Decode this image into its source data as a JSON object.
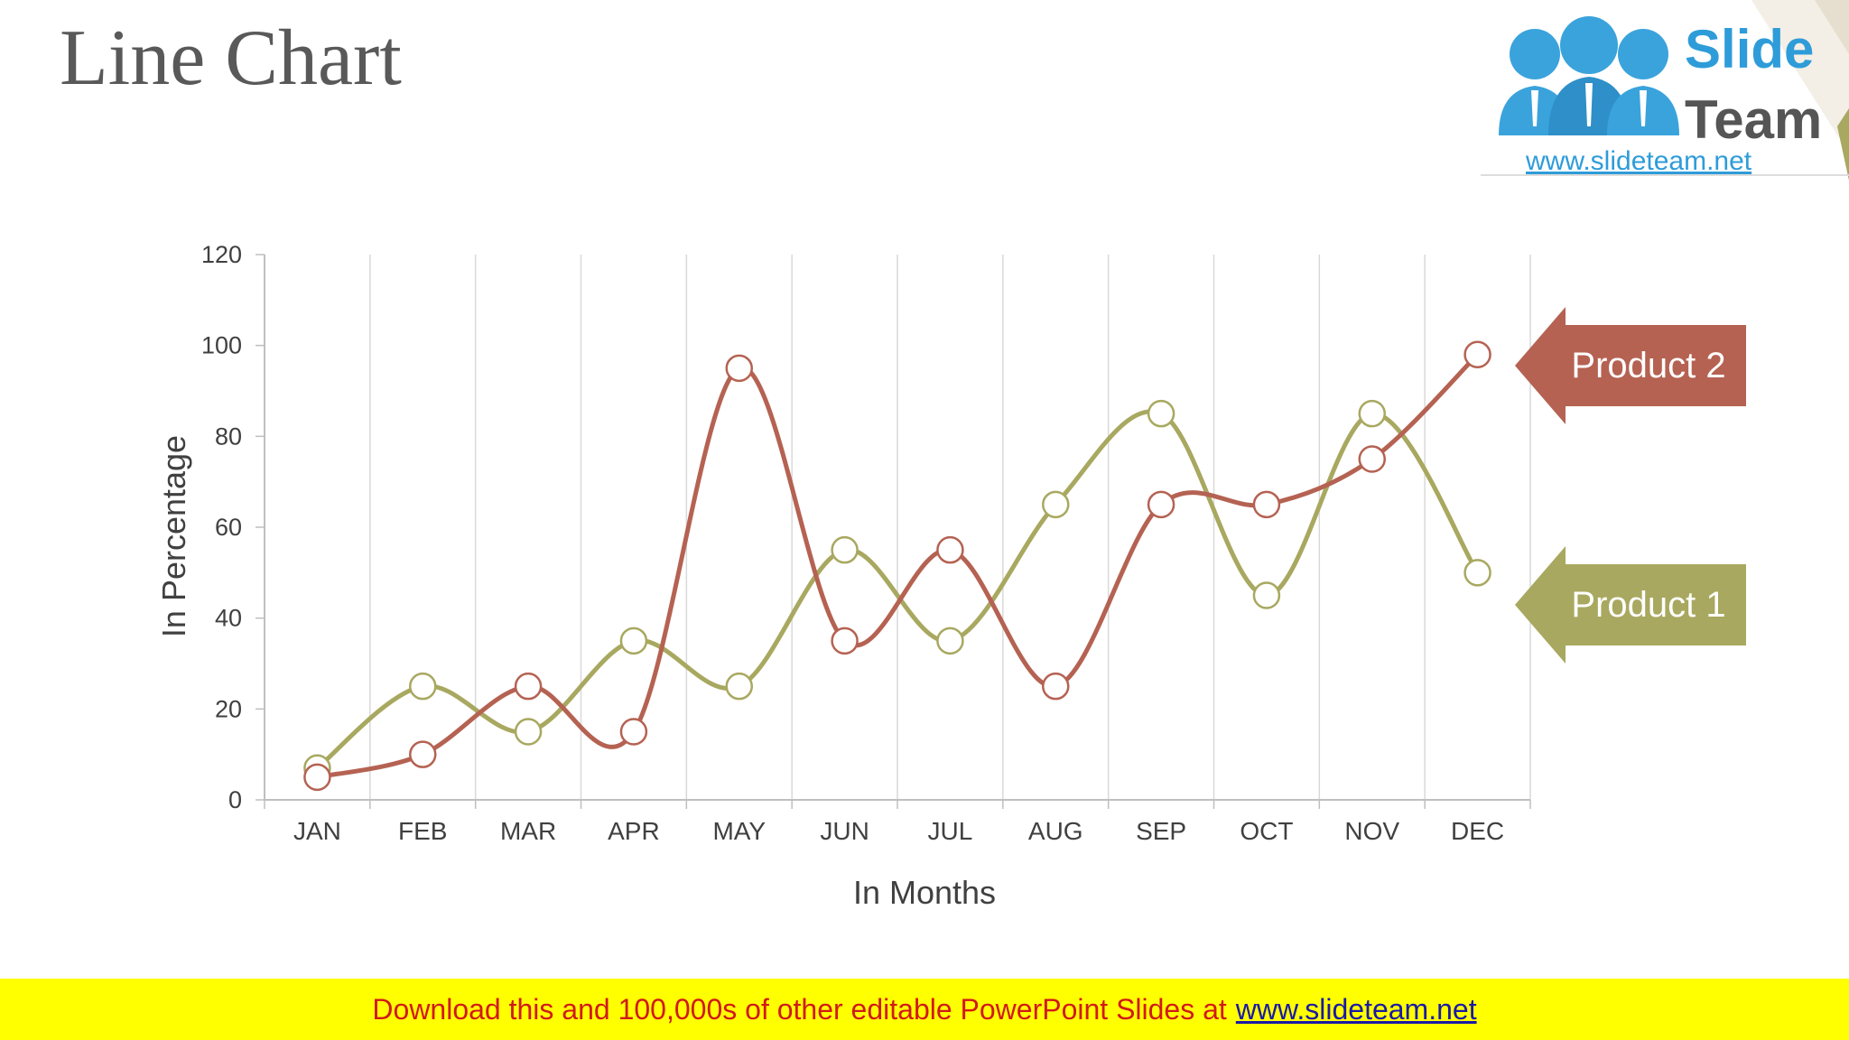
{
  "slide": {
    "title": "Line Chart"
  },
  "logo": {
    "word1": "Slide",
    "word2": "Team",
    "url": "www.slideteam.net"
  },
  "footer": {
    "text": "Download this and 100,000s of other editable PowerPoint Slides at",
    "link": "www.slideteam.net"
  },
  "colors": {
    "product1": "#a8a860",
    "product2": "#b56252",
    "grid": "#d9d9d9",
    "axis_text": "#404040"
  },
  "chart_data": {
    "type": "line",
    "title": "",
    "xlabel": "In Months",
    "ylabel": "In Percentage",
    "categories": [
      "JAN",
      "FEB",
      "MAR",
      "APR",
      "MAY",
      "JUN",
      "JUL",
      "AUG",
      "SEP",
      "OCT",
      "NOV",
      "DEC"
    ],
    "ylim": [
      0,
      120
    ],
    "yticks": [
      0,
      20,
      40,
      60,
      80,
      100,
      120
    ],
    "grid": "vertical",
    "smooth": true,
    "series": [
      {
        "name": "Product 1",
        "color": "#a8a860",
        "values": [
          7,
          25,
          15,
          35,
          25,
          55,
          35,
          65,
          85,
          45,
          85,
          50
        ]
      },
      {
        "name": "Product 2",
        "color": "#b56252",
        "values": [
          5,
          10,
          25,
          15,
          95,
          35,
          55,
          25,
          65,
          65,
          75,
          98
        ]
      }
    ]
  }
}
